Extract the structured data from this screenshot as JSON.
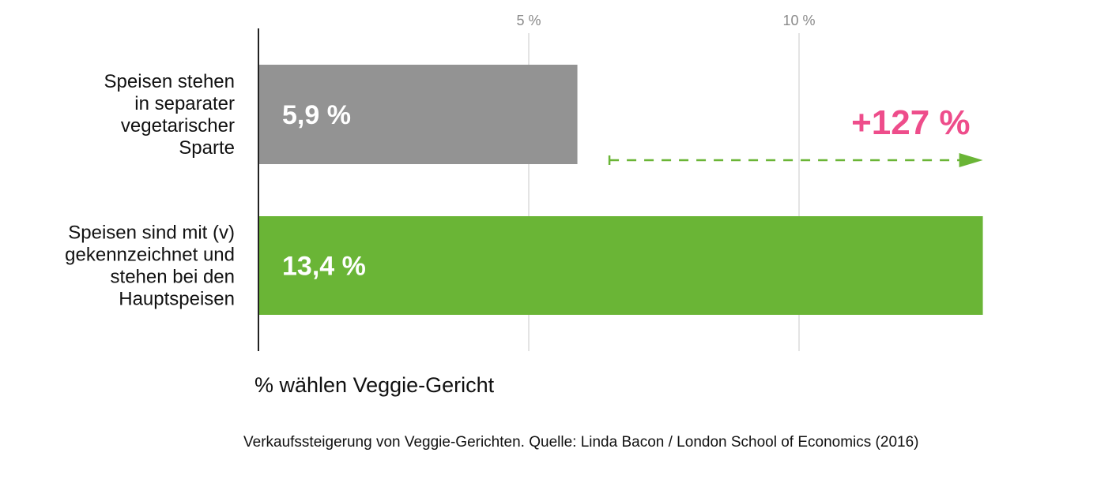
{
  "chart_data": {
    "type": "bar",
    "orientation": "horizontal",
    "categories": [
      [
        "Speisen stehen",
        "in separater",
        "vegetarischer",
        "Sparte"
      ],
      [
        "Speisen sind mit (v)",
        "gekennzeichnet und",
        "stehen bei den",
        "Hauptspeisen"
      ]
    ],
    "values": [
      5.9,
      13.4
    ],
    "value_labels": [
      "5,9 %",
      "13,4 %"
    ],
    "bar_colors": [
      "#939393",
      "#6ab536"
    ],
    "xticks": [
      5,
      10
    ],
    "xtick_labels": [
      "5 %",
      "10 %"
    ],
    "xlim": [
      0,
      13.4
    ],
    "grid": true,
    "xlabel": "% wählen Veggie-Gericht",
    "annotation": {
      "text": "+127 %",
      "color": "#ee4d8b",
      "arrow_color": "#6ab536",
      "arrow_from": 6.2,
      "arrow_to": 13.4
    }
  },
  "source": "Verkaufssteigerung von Veggie-Gerichten. Quelle: Linda Bacon / London School of Economics (2016)"
}
